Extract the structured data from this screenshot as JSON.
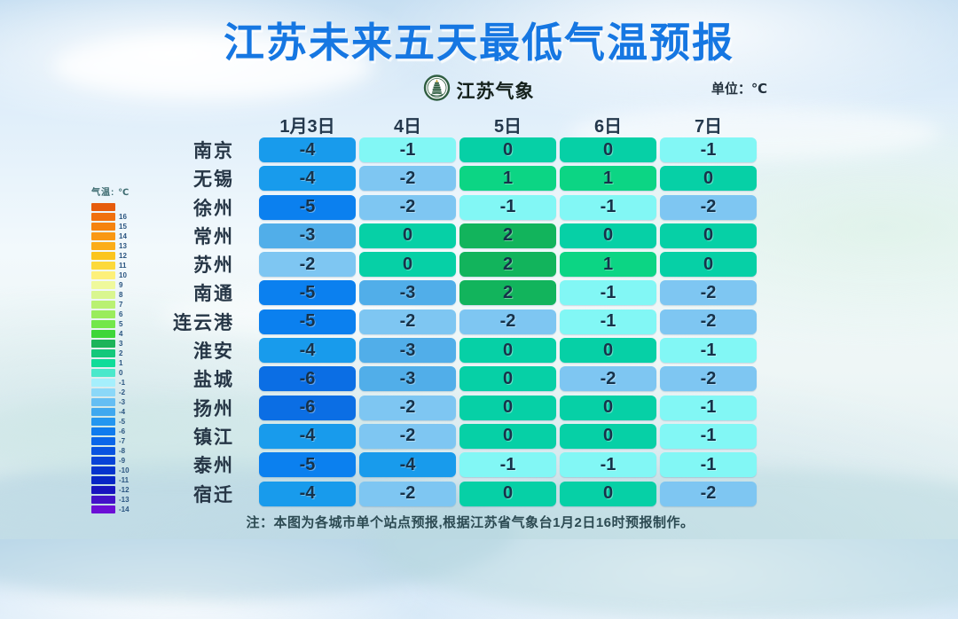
{
  "title": "江苏未来五天最低气温预报",
  "logo": {
    "text": "江苏气象"
  },
  "unit_label": "单位：℃",
  "note": "注：本图为各城市单个站点预报,根据江苏省气象台1月2日16时预报制作。",
  "legend": {
    "title": "气温: ℃",
    "entries": [
      {
        "label": "",
        "color": "#E65C0C"
      },
      {
        "label": "16",
        "color": "#F0700E"
      },
      {
        "label": "15",
        "color": "#F5830E"
      },
      {
        "label": "14",
        "color": "#F99813"
      },
      {
        "label": "13",
        "color": "#FBAD18"
      },
      {
        "label": "12",
        "color": "#FBC51E"
      },
      {
        "label": "11",
        "color": "#FCD93B"
      },
      {
        "label": "10",
        "color": "#FDF07A"
      },
      {
        "label": "9",
        "color": "#EFF99C"
      },
      {
        "label": "8",
        "color": "#D9F68F"
      },
      {
        "label": "7",
        "color": "#B9F172"
      },
      {
        "label": "6",
        "color": "#9AEC5C"
      },
      {
        "label": "5",
        "color": "#73E74A"
      },
      {
        "label": "4",
        "color": "#3ED639"
      },
      {
        "label": "3",
        "color": "#1CB45A"
      },
      {
        "label": "2",
        "color": "#14C87B"
      },
      {
        "label": "1",
        "color": "#0FDC99"
      },
      {
        "label": "0",
        "color": "#4AE8CB"
      },
      {
        "label": "-1",
        "color": "#A5EFFC"
      },
      {
        "label": "-2",
        "color": "#8BD8F8"
      },
      {
        "label": "-3",
        "color": "#64BEF3"
      },
      {
        "label": "-4",
        "color": "#3FA8EF"
      },
      {
        "label": "-5",
        "color": "#2396F0"
      },
      {
        "label": "-6",
        "color": "#0F7BEE"
      },
      {
        "label": "-7",
        "color": "#0A66E9"
      },
      {
        "label": "-8",
        "color": "#0853E0"
      },
      {
        "label": "-9",
        "color": "#0743D7"
      },
      {
        "label": "-10",
        "color": "#0534CD"
      },
      {
        "label": "-11",
        "color": "#0726C5"
      },
      {
        "label": "-12",
        "color": "#1814BE"
      },
      {
        "label": "-13",
        "color": "#4312C8"
      },
      {
        "label": "-14",
        "color": "#6B0FD6"
      }
    ]
  },
  "chart_data": {
    "type": "heatmap",
    "title": "江苏未来五天最低气温预报",
    "unit": "℃",
    "columns": [
      "1月3日",
      "4日",
      "5日",
      "6日",
      "7日"
    ],
    "rows": [
      "南京",
      "无锡",
      "徐州",
      "常州",
      "苏州",
      "南通",
      "连云港",
      "淮安",
      "盐城",
      "扬州",
      "镇江",
      "泰州",
      "宿迁"
    ],
    "values": [
      [
        -4,
        -1,
        0,
        0,
        -1
      ],
      [
        -4,
        -2,
        1,
        1,
        0
      ],
      [
        -5,
        -2,
        -1,
        -1,
        -2
      ],
      [
        -3,
        0,
        2,
        0,
        0
      ],
      [
        -2,
        0,
        2,
        1,
        0
      ],
      [
        -5,
        -3,
        2,
        -1,
        -2
      ],
      [
        -5,
        -2,
        -2,
        -1,
        -2
      ],
      [
        -4,
        -3,
        0,
        0,
        -1
      ],
      [
        -6,
        -3,
        0,
        -2,
        -2
      ],
      [
        -6,
        -2,
        0,
        0,
        -1
      ],
      [
        -4,
        -2,
        0,
        0,
        -1
      ],
      [
        -5,
        -4,
        -1,
        -1,
        -1
      ],
      [
        -4,
        -2,
        0,
        0,
        -2
      ]
    ],
    "cell_colors_by_value": {
      "2": "#12B45C",
      "1": "#0CD584",
      "0": "#06D0A6",
      "-1": "#82F7F5",
      "-2": "#7EC6F2",
      "-3": "#51AEE9",
      "-4": "#189BEC",
      "-5": "#0B80EF",
      "-6": "#0B6EE4"
    },
    "legend_position": "left",
    "legend_range": [
      16,
      -14
    ]
  },
  "colors": {
    "title_blue": "#1677E2",
    "header_text": "#24384C",
    "cell_text": "#16324A"
  }
}
